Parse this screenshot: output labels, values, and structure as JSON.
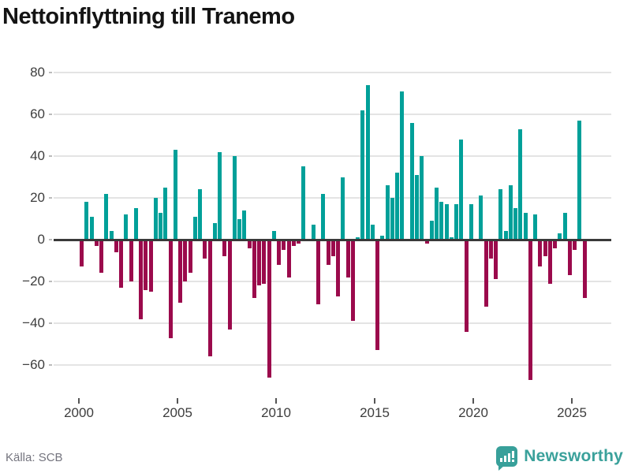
{
  "title": "Nettoinflyttning till Tranemo",
  "source": "Källa: SCB",
  "logo": {
    "text": "Newsworthy"
  },
  "colors": {
    "positive": "#00a099",
    "negative": "#9b0a4c",
    "axis": "#3a3a3a",
    "grid": "#e4e4e4",
    "brand": "#38a09a"
  },
  "chart_data": {
    "type": "bar",
    "title": "Nettoinflyttning till Tranemo",
    "xlabel": "",
    "ylabel": "",
    "frequency": "quarterly",
    "start": {
      "year": 2000,
      "quarter": 1
    },
    "end": {
      "year": 2025,
      "quarter": 3
    },
    "ylim": [
      -70,
      85
    ],
    "grid": true,
    "y_ticks": [
      80,
      60,
      40,
      20,
      0,
      -20,
      -40,
      -60
    ],
    "y_tick_labels": [
      "80",
      "60",
      "40",
      "20",
      "0",
      "−20",
      "−40",
      "−60"
    ],
    "x_tick_labels": [
      "2000",
      "2005",
      "2010",
      "2015",
      "2020",
      "2025"
    ],
    "values": [
      -13,
      18,
      11,
      -3,
      -16,
      22,
      4,
      -6,
      -23,
      12,
      -20,
      15,
      -38,
      -24,
      -25,
      20,
      13,
      25,
      -47,
      43,
      -30,
      -20,
      -16,
      11,
      24,
      -9,
      -56,
      8,
      42,
      -8,
      -43,
      40,
      10,
      14,
      -4,
      -28,
      -22,
      -21,
      -66,
      4,
      -12,
      -5,
      -18,
      -3,
      -2,
      35,
      0,
      7,
      -31,
      22,
      -12,
      -8,
      -27,
      30,
      -18,
      -39,
      1,
      62,
      74,
      7,
      -53,
      2,
      26,
      20,
      32,
      71,
      0,
      56,
      31,
      40,
      -2,
      9,
      25,
      18,
      17,
      1,
      17,
      48,
      -44,
      17,
      0,
      21,
      -32,
      -9,
      -19,
      24,
      4,
      26,
      15,
      53,
      13,
      -67,
      12,
      -13,
      -8,
      -21,
      -4,
      3,
      13,
      -17,
      -5,
      57,
      -28
    ]
  }
}
